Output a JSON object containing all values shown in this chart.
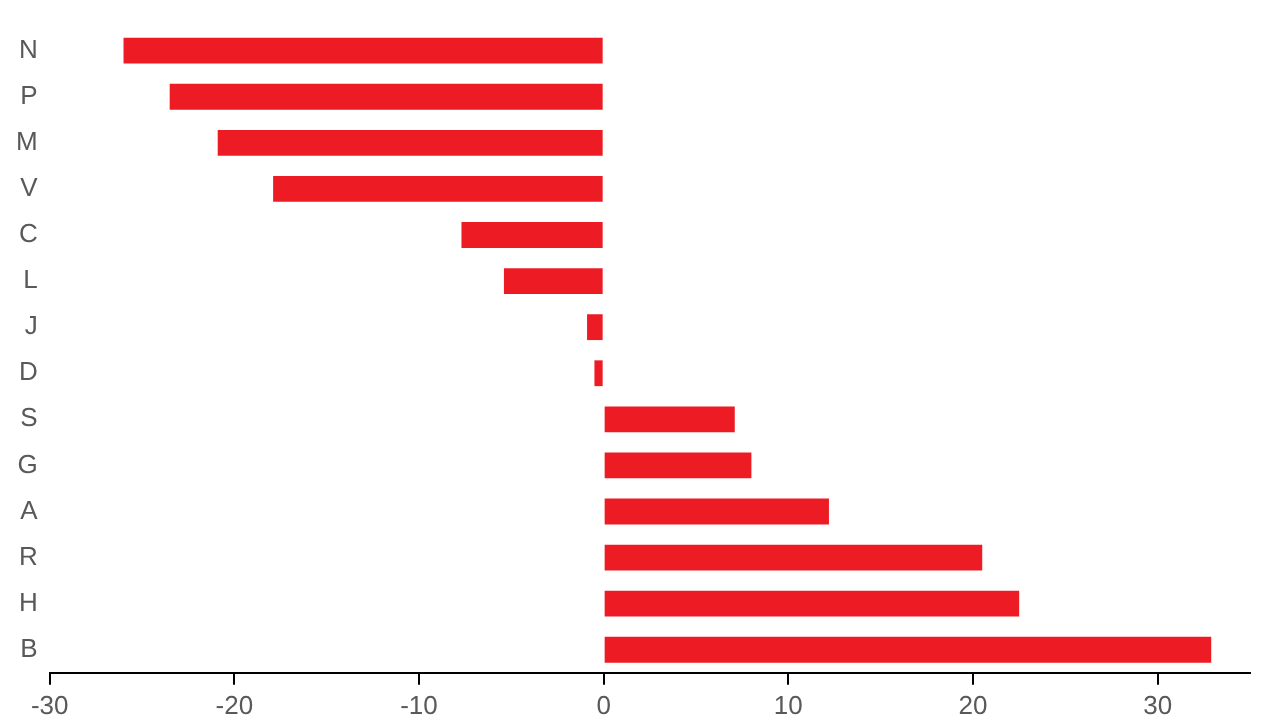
{
  "chart_data": {
    "type": "bar",
    "orientation": "horizontal",
    "categories": [
      "N",
      "P",
      "M",
      "V",
      "C",
      "L",
      "J",
      "D",
      "S",
      "G",
      "A",
      "R",
      "H",
      "B"
    ],
    "values": [
      -26.0,
      -23.5,
      -20.9,
      -17.9,
      -7.7,
      -5.4,
      -0.9,
      -0.5,
      7.1,
      8.0,
      12.2,
      20.5,
      22.5,
      32.9
    ],
    "color": "#ed1c24",
    "xlim": [
      -30,
      35
    ],
    "xticks": [
      -30,
      -20,
      -10,
      0,
      10,
      20,
      30
    ],
    "grid": false,
    "legend": false
  }
}
